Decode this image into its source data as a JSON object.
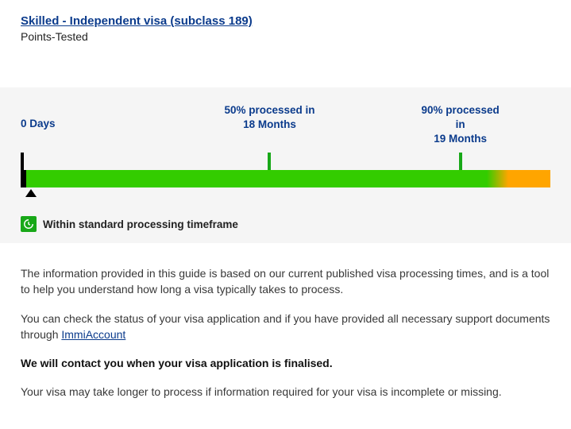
{
  "header": {
    "visa_title": "Skilled - Independent visa (subclass 189)",
    "subtitle": "Points-Tested"
  },
  "timeline": {
    "markers": {
      "start": {
        "label": "0 Days",
        "pos_pct": 0
      },
      "mid": {
        "line1": "50% processed in",
        "line2": "18 Months",
        "pos_pct": 47
      },
      "end": {
        "line1": "90% processed in",
        "line2": "19 Months",
        "pos_pct": 83
      }
    },
    "ticks": {
      "start_color": "#000000",
      "mid_color": "#18a818",
      "end_color": "#18a818"
    },
    "bar": {
      "black_width_pct": 1.0,
      "green_start_pct": 1.0,
      "green_end_pct": 88,
      "grad_start_pct": 88,
      "grad_end_pct": 92,
      "orange_start_pct": 92,
      "orange_end_pct": 100,
      "green_color": "#33cc00",
      "orange_color": "#ffa500",
      "black_color": "#000000"
    },
    "pointer_pos_pct": 2,
    "status_text": "Within standard processing timeframe",
    "status_icon_bg": "#18a818"
  },
  "info": {
    "p1": "The information provided in this guide is based on our current published visa processing times, and is a tool to help you understand how long a visa typically takes to process.",
    "p2_pre": "You can check the status of your visa application and if you have provided all necessary support documents through ",
    "p2_link": "ImmiAccount",
    "p3": "We will contact you when your visa application is finalised.",
    "p4": "Your visa may take longer to process if information required for your visa is incomplete or missing."
  },
  "colors": {
    "link": "#0b3b8c",
    "panel_bg": "#f5f5f5",
    "text": "#383838"
  }
}
